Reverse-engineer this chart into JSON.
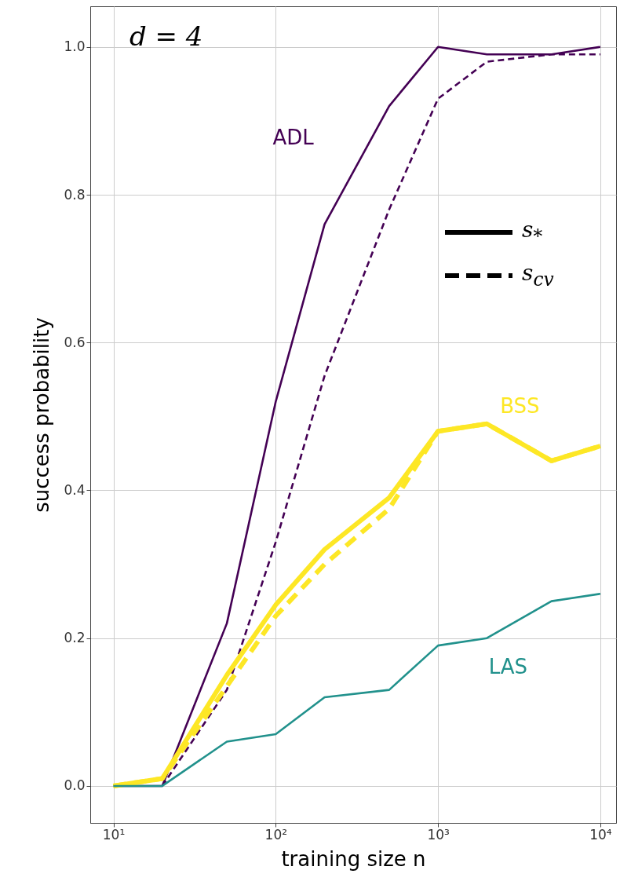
{
  "chart_data": {
    "type": "line",
    "xlabel": "training size n",
    "ylabel": "success probability",
    "x": [
      10,
      20,
      50,
      100,
      200,
      500,
      1000,
      2000,
      5000,
      10000
    ],
    "series": [
      {
        "name": "ADL",
        "color": "#440154",
        "line_style": "solid",
        "values": [
          0,
          0,
          0.22,
          0.52,
          0.76,
          0.92,
          1.0,
          0.99,
          0.99,
          1.0
        ]
      },
      {
        "color": "#440154",
        "line_style": "dashed",
        "values": [
          null,
          0,
          0.13,
          0.33,
          0.555,
          0.78,
          0.93,
          0.98,
          0.99,
          0.99
        ]
      },
      {
        "name": "BSS",
        "color": "#fde725",
        "line_style": "solid",
        "values": [
          0,
          0.01,
          0.15,
          0.245,
          0.32,
          0.39,
          0.48,
          0.49,
          0.44,
          0.46
        ]
      },
      {
        "color": "#fde725",
        "line_style": "dashed",
        "values": [
          0,
          0.01,
          0.135,
          0.23,
          0.3,
          0.375,
          0.48,
          0.49,
          0.44,
          0.46
        ]
      },
      {
        "name": "LAS",
        "color": "#21918c",
        "line_style": "solid",
        "values": [
          0,
          0,
          0.06,
          0.07,
          0.12,
          0.13,
          0.19,
          0.2,
          0.25,
          0.26
        ]
      }
    ],
    "log": "x",
    "xlim": [
      7.2,
      12500
    ],
    "xticks": [
      {
        "value": 10,
        "label": "10¹"
      },
      {
        "value": 100,
        "label": "10²"
      },
      {
        "value": 1000,
        "label": "10³"
      },
      {
        "value": 10000,
        "label": "10⁴"
      }
    ],
    "ylim": [
      -0.05,
      1.055
    ],
    "yticks": [
      {
        "value": 0,
        "label": "0.0"
      },
      {
        "value": 0.2,
        "label": "0.2"
      },
      {
        "value": 0.4,
        "label": "0.4"
      },
      {
        "value": 0.6,
        "label": "0.6"
      },
      {
        "value": 0.8,
        "label": "0.8"
      },
      {
        "value": 1.0,
        "label": "1.0"
      }
    ],
    "grid": true,
    "annotations": [
      "d = 4",
      "s$_{*}$",
      "s$_{cv}$"
    ]
  }
}
